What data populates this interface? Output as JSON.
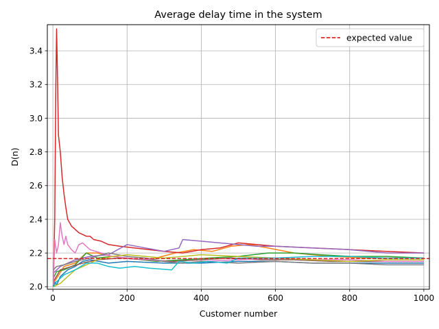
{
  "chart_data": {
    "type": "line",
    "title": "Average delay time in the system",
    "xlabel": "Customer number",
    "ylabel": "D(n)",
    "xlim": [
      -15,
      1015
    ],
    "ylim": [
      1.985,
      3.555
    ],
    "xticks": [
      0,
      200,
      400,
      600,
      800,
      1000
    ],
    "yticks": [
      2.0,
      2.2,
      2.4,
      2.6,
      2.8,
      3.0,
      3.2,
      3.4
    ],
    "xtick_labels": [
      "0",
      "200",
      "400",
      "600",
      "800",
      "1000"
    ],
    "ytick_labels": [
      "2.0",
      "2.2",
      "2.4",
      "2.6",
      "2.8",
      "3.0",
      "3.2",
      "3.4"
    ],
    "grid": true,
    "legend": {
      "placement": "top-right",
      "entries": [
        "expected value"
      ]
    },
    "reference_line": {
      "name": "expected value",
      "y": 2.167,
      "color": "#d62728",
      "style": "dashed"
    },
    "series": [
      {
        "color": "#1f77b4",
        "points": [
          [
            1,
            2.0
          ],
          [
            5,
            2.03
          ],
          [
            10,
            2.01
          ],
          [
            20,
            2.06
          ],
          [
            40,
            2.1
          ],
          [
            60,
            2.12
          ],
          [
            80,
            2.15
          ],
          [
            100,
            2.16
          ],
          [
            150,
            2.14
          ],
          [
            200,
            2.15
          ],
          [
            300,
            2.14
          ],
          [
            400,
            2.14
          ],
          [
            500,
            2.15
          ],
          [
            600,
            2.15
          ],
          [
            700,
            2.14
          ],
          [
            800,
            2.14
          ],
          [
            900,
            2.14
          ],
          [
            1000,
            2.14
          ]
        ]
      },
      {
        "color": "#ff7f0e",
        "points": [
          [
            1,
            2.02
          ],
          [
            10,
            2.05
          ],
          [
            30,
            2.12
          ],
          [
            60,
            2.14
          ],
          [
            90,
            2.2
          ],
          [
            120,
            2.2
          ],
          [
            160,
            2.18
          ],
          [
            200,
            2.17
          ],
          [
            260,
            2.16
          ],
          [
            330,
            2.2
          ],
          [
            380,
            2.22
          ],
          [
            430,
            2.21
          ],
          [
            480,
            2.24
          ],
          [
            530,
            2.25
          ],
          [
            580,
            2.23
          ],
          [
            650,
            2.2
          ],
          [
            750,
            2.18
          ],
          [
            850,
            2.17
          ],
          [
            1000,
            2.17
          ]
        ]
      },
      {
        "color": "#2ca02c",
        "points": [
          [
            1,
            2.05
          ],
          [
            10,
            2.09
          ],
          [
            30,
            2.1
          ],
          [
            60,
            2.13
          ],
          [
            90,
            2.2
          ],
          [
            120,
            2.17
          ],
          [
            160,
            2.18
          ],
          [
            200,
            2.17
          ],
          [
            280,
            2.15
          ],
          [
            350,
            2.16
          ],
          [
            420,
            2.17
          ],
          [
            500,
            2.18
          ],
          [
            580,
            2.2
          ],
          [
            650,
            2.2
          ],
          [
            720,
            2.19
          ],
          [
            800,
            2.18
          ],
          [
            900,
            2.18
          ],
          [
            1000,
            2.17
          ]
        ]
      },
      {
        "color": "#d62728",
        "points": [
          [
            1,
            2.0
          ],
          [
            5,
            2.4
          ],
          [
            8,
            3.2
          ],
          [
            10,
            3.53
          ],
          [
            12,
            3.3
          ],
          [
            15,
            2.9
          ],
          [
            20,
            2.8
          ],
          [
            25,
            2.65
          ],
          [
            30,
            2.55
          ],
          [
            35,
            2.47
          ],
          [
            40,
            2.4
          ],
          [
            50,
            2.36
          ],
          [
            60,
            2.34
          ],
          [
            70,
            2.32
          ],
          [
            80,
            2.31
          ],
          [
            90,
            2.3
          ],
          [
            100,
            2.3
          ],
          [
            110,
            2.28
          ],
          [
            130,
            2.27
          ],
          [
            150,
            2.25
          ],
          [
            180,
            2.24
          ],
          [
            220,
            2.23
          ],
          [
            260,
            2.22
          ],
          [
            300,
            2.21
          ],
          [
            350,
            2.2
          ],
          [
            400,
            2.22
          ],
          [
            450,
            2.23
          ],
          [
            500,
            2.26
          ],
          [
            550,
            2.25
          ],
          [
            600,
            2.24
          ],
          [
            700,
            2.23
          ],
          [
            800,
            2.22
          ],
          [
            900,
            2.21
          ],
          [
            1000,
            2.2
          ]
        ]
      },
      {
        "color": "#9467bd",
        "points": [
          [
            1,
            2.08
          ],
          [
            20,
            2.12
          ],
          [
            60,
            2.16
          ],
          [
            100,
            2.18
          ],
          [
            150,
            2.19
          ],
          [
            200,
            2.25
          ],
          [
            250,
            2.23
          ],
          [
            300,
            2.21
          ],
          [
            340,
            2.23
          ],
          [
            350,
            2.28
          ],
          [
            400,
            2.27
          ],
          [
            450,
            2.26
          ],
          [
            500,
            2.25
          ],
          [
            550,
            2.24
          ],
          [
            600,
            2.24
          ],
          [
            700,
            2.23
          ],
          [
            800,
            2.22
          ],
          [
            900,
            2.2
          ],
          [
            1000,
            2.2
          ]
        ]
      },
      {
        "color": "#8c564b",
        "points": [
          [
            1,
            2.03
          ],
          [
            20,
            2.1
          ],
          [
            50,
            2.12
          ],
          [
            80,
            2.14
          ],
          [
            120,
            2.16
          ],
          [
            180,
            2.17
          ],
          [
            250,
            2.16
          ],
          [
            320,
            2.15
          ],
          [
            400,
            2.16
          ],
          [
            480,
            2.17
          ],
          [
            560,
            2.16
          ],
          [
            650,
            2.16
          ],
          [
            750,
            2.15
          ],
          [
            850,
            2.15
          ],
          [
            1000,
            2.15
          ]
        ]
      },
      {
        "color": "#e377c2",
        "points": [
          [
            1,
            2.01
          ],
          [
            5,
            2.28
          ],
          [
            10,
            2.2
          ],
          [
            15,
            2.25
          ],
          [
            20,
            2.38
          ],
          [
            25,
            2.3
          ],
          [
            30,
            2.25
          ],
          [
            35,
            2.3
          ],
          [
            40,
            2.25
          ],
          [
            50,
            2.22
          ],
          [
            60,
            2.2
          ],
          [
            70,
            2.25
          ],
          [
            80,
            2.26
          ],
          [
            100,
            2.22
          ],
          [
            130,
            2.2
          ],
          [
            160,
            2.18
          ],
          [
            200,
            2.17
          ],
          [
            260,
            2.16
          ],
          [
            300,
            2.15
          ],
          [
            350,
            2.14
          ],
          [
            400,
            2.15
          ],
          [
            500,
            2.16
          ],
          [
            600,
            2.17
          ],
          [
            700,
            2.16
          ],
          [
            800,
            2.16
          ],
          [
            900,
            2.15
          ],
          [
            1000,
            2.15
          ]
        ]
      },
      {
        "color": "#7f7f7f",
        "points": [
          [
            1,
            2.1
          ],
          [
            10,
            2.12
          ],
          [
            30,
            2.13
          ],
          [
            60,
            2.15
          ],
          [
            100,
            2.17
          ],
          [
            150,
            2.2
          ],
          [
            200,
            2.18
          ],
          [
            250,
            2.17
          ],
          [
            300,
            2.15
          ],
          [
            350,
            2.14
          ],
          [
            400,
            2.15
          ],
          [
            500,
            2.14
          ],
          [
            600,
            2.15
          ],
          [
            700,
            2.14
          ],
          [
            800,
            2.14
          ],
          [
            900,
            2.13
          ],
          [
            1000,
            2.13
          ]
        ]
      },
      {
        "color": "#bcbd22",
        "points": [
          [
            1,
            2.0
          ],
          [
            20,
            2.02
          ],
          [
            40,
            2.06
          ],
          [
            60,
            2.1
          ],
          [
            90,
            2.13
          ],
          [
            120,
            2.16
          ],
          [
            160,
            2.18
          ],
          [
            200,
            2.19
          ],
          [
            250,
            2.18
          ],
          [
            300,
            2.17
          ],
          [
            350,
            2.18
          ],
          [
            400,
            2.19
          ],
          [
            500,
            2.18
          ],
          [
            600,
            2.17
          ],
          [
            700,
            2.16
          ],
          [
            800,
            2.15
          ],
          [
            900,
            2.16
          ],
          [
            1000,
            2.16
          ]
        ]
      },
      {
        "color": "#17becf",
        "points": [
          [
            1,
            2.0
          ],
          [
            10,
            2.03
          ],
          [
            30,
            2.07
          ],
          [
            60,
            2.1
          ],
          [
            90,
            2.14
          ],
          [
            120,
            2.14
          ],
          [
            150,
            2.12
          ],
          [
            180,
            2.11
          ],
          [
            220,
            2.12
          ],
          [
            260,
            2.11
          ],
          [
            320,
            2.1
          ],
          [
            340,
            2.15
          ],
          [
            380,
            2.14
          ],
          [
            420,
            2.15
          ],
          [
            470,
            2.14
          ],
          [
            500,
            2.17
          ],
          [
            600,
            2.17
          ],
          [
            700,
            2.18
          ],
          [
            800,
            2.18
          ],
          [
            900,
            2.17
          ],
          [
            1000,
            2.17
          ]
        ]
      }
    ]
  }
}
